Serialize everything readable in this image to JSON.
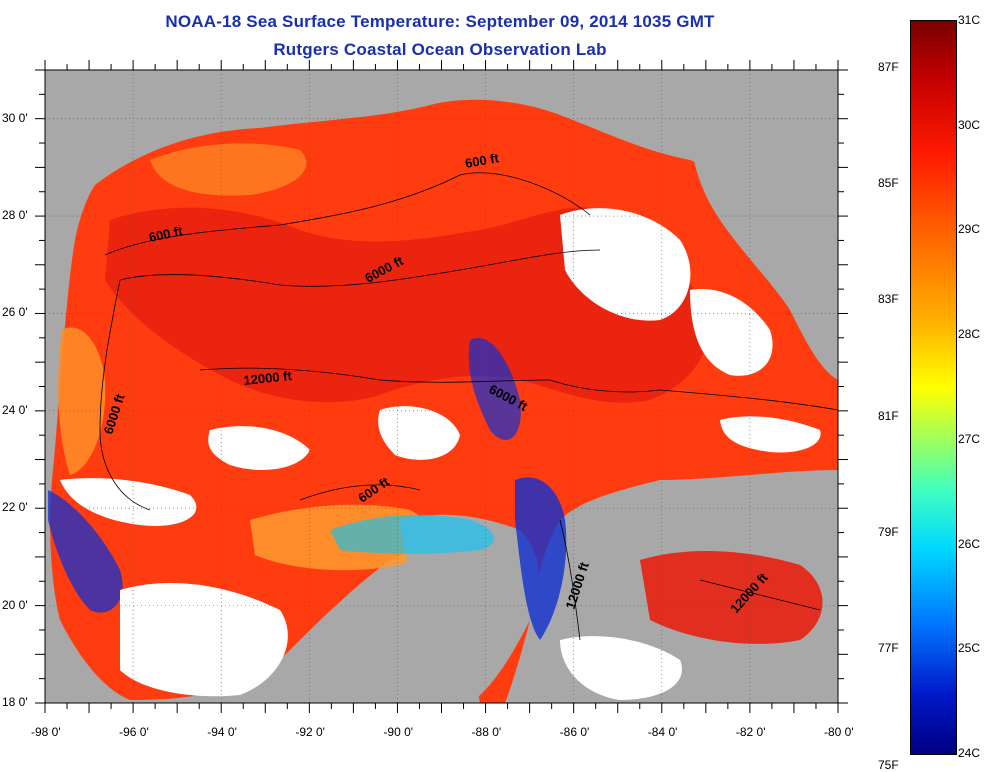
{
  "title": "NOAA-18 Sea Surface Temperature:  September 09, 2014 1035 GMT",
  "subtitle": "Rutgers Coastal Ocean Observation Lab",
  "x_ticks": [
    "-98 0'",
    "-96 0'",
    "-94 0'",
    "-92 0'",
    "-90 0'",
    "-88 0'",
    "-86 0'",
    "-84 0'",
    "-82 0'",
    "-80 0'"
  ],
  "y_ticks": [
    "30 0'",
    "28 0'",
    "26 0'",
    "24 0'",
    "22 0'",
    "20 0'",
    "18 0'"
  ],
  "lon_range": [
    -98,
    -80
  ],
  "lat_range": [
    18,
    31
  ],
  "colorbar": {
    "celsius": [
      "31C",
      "30C",
      "29C",
      "28C",
      "27C",
      "26C",
      "25C",
      "24C"
    ],
    "fahrenheit": [
      "87F",
      "85F",
      "83F",
      "81F",
      "79F",
      "77F",
      "75F"
    ],
    "range_c": [
      24,
      31
    ],
    "colors": {
      "max": "#7a0000",
      "hot": "#ff2200",
      "warm": "#ff8000",
      "mid": "#ffff00",
      "cool": "#00d8ff",
      "min": "#000080"
    }
  },
  "map_colors": {
    "land": "#a8a8a8",
    "cloud": "#ffffff",
    "sea_warm": "#ff3c10",
    "sea_hot": "#e82010",
    "sea_orange": "#ff7a20",
    "sea_cool": "#1030d0"
  },
  "contour_labels": [
    "600 ft",
    "600 ft",
    "6000 ft",
    "12000 ft",
    "6000 ft",
    "6000 ft",
    "600 ft",
    "12000 ft",
    "12000 ft"
  ]
}
